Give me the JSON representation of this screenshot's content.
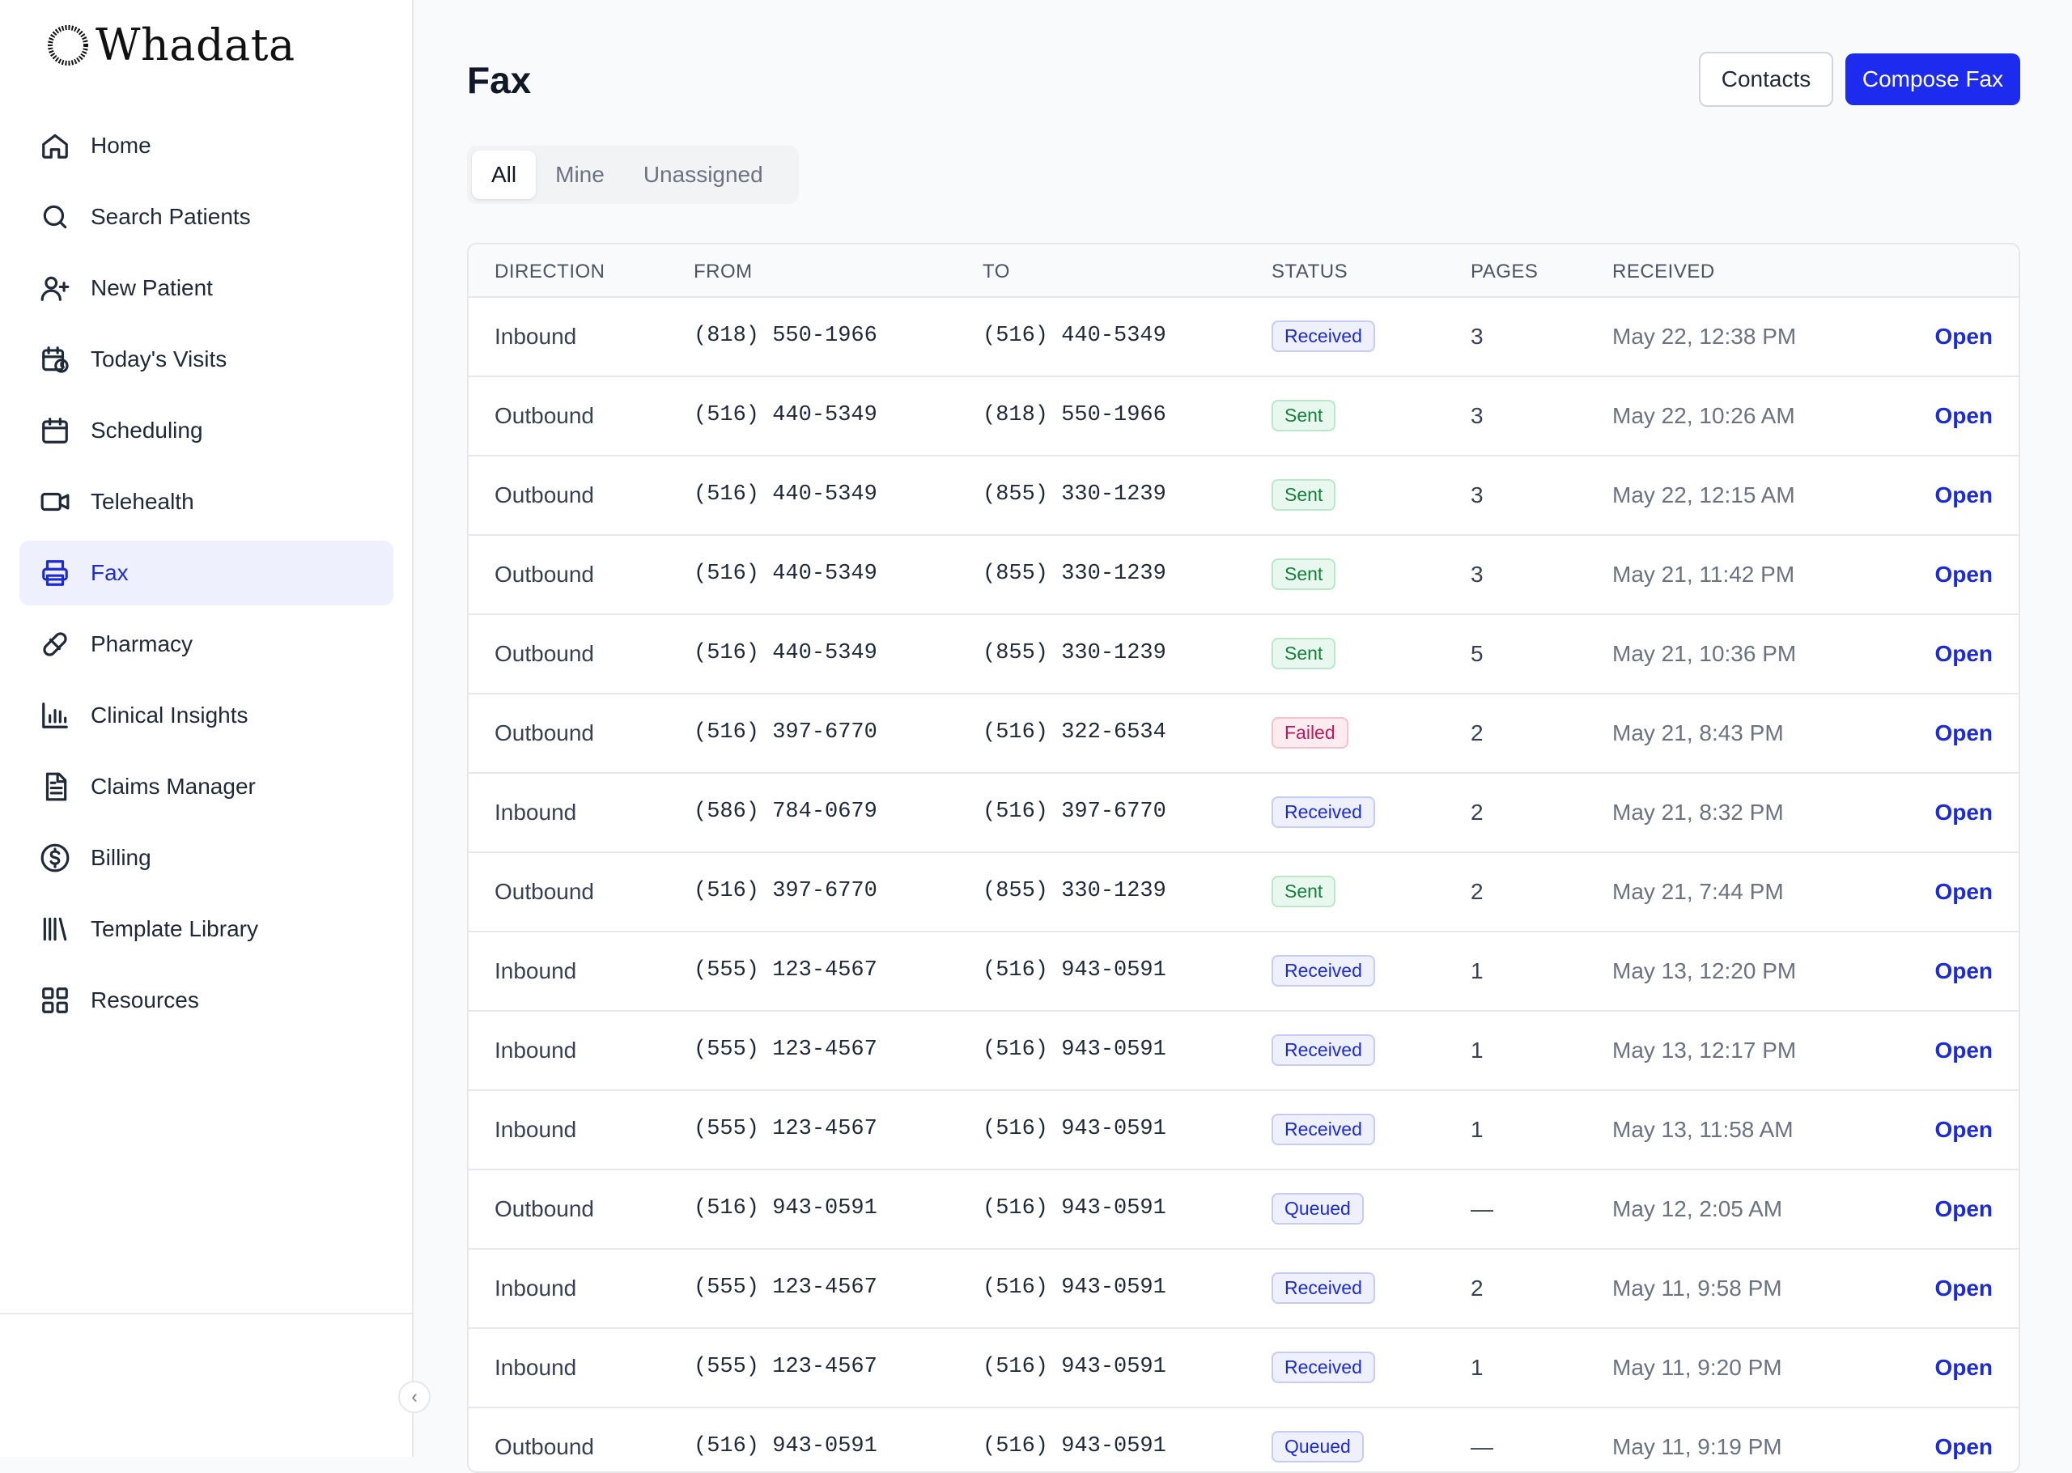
{
  "app": {
    "name": "Whadata"
  },
  "sidebar": {
    "items": [
      {
        "label": "Home",
        "icon": "home-icon",
        "active": false
      },
      {
        "label": "Search Patients",
        "icon": "search-icon",
        "active": false
      },
      {
        "label": "New Patient",
        "icon": "user-plus-icon",
        "active": false
      },
      {
        "label": "Today's Visits",
        "icon": "calendar-clock-icon",
        "active": false
      },
      {
        "label": "Scheduling",
        "icon": "calendar-icon",
        "active": false
      },
      {
        "label": "Telehealth",
        "icon": "video-icon",
        "active": false
      },
      {
        "label": "Fax",
        "icon": "printer-icon",
        "active": true
      },
      {
        "label": "Pharmacy",
        "icon": "pill-icon",
        "active": false
      },
      {
        "label": "Clinical Insights",
        "icon": "bar-chart-icon",
        "active": false
      },
      {
        "label": "Claims Manager",
        "icon": "document-icon",
        "active": false
      },
      {
        "label": "Billing",
        "icon": "dollar-icon",
        "active": false
      },
      {
        "label": "Template Library",
        "icon": "library-icon",
        "active": false
      },
      {
        "label": "Resources",
        "icon": "grid-icon",
        "active": false
      }
    ]
  },
  "header": {
    "title": "Fax",
    "contacts_label": "Contacts",
    "compose_label": "Compose Fax"
  },
  "tabs": [
    {
      "label": "All",
      "active": true
    },
    {
      "label": "Mine",
      "active": false
    },
    {
      "label": "Unassigned",
      "active": false
    }
  ],
  "table": {
    "columns": [
      "DIRECTION",
      "FROM",
      "TO",
      "STATUS",
      "PAGES",
      "RECEIVED"
    ],
    "rows": [
      {
        "direction": "Inbound",
        "from": "(818) 550-1966",
        "to": "(516) 440-5349",
        "status": "Received",
        "pages": "3",
        "received": "May 22, 12:38 PM",
        "action": "Open"
      },
      {
        "direction": "Outbound",
        "from": "(516) 440-5349",
        "to": "(818) 550-1966",
        "status": "Sent",
        "pages": "3",
        "received": "May 22, 10:26 AM",
        "action": "Open"
      },
      {
        "direction": "Outbound",
        "from": "(516) 440-5349",
        "to": "(855) 330-1239",
        "status": "Sent",
        "pages": "3",
        "received": "May 22, 12:15 AM",
        "action": "Open"
      },
      {
        "direction": "Outbound",
        "from": "(516) 440-5349",
        "to": "(855) 330-1239",
        "status": "Sent",
        "pages": "3",
        "received": "May 21, 11:42 PM",
        "action": "Open"
      },
      {
        "direction": "Outbound",
        "from": "(516) 440-5349",
        "to": "(855) 330-1239",
        "status": "Sent",
        "pages": "5",
        "received": "May 21, 10:36 PM",
        "action": "Open"
      },
      {
        "direction": "Outbound",
        "from": "(516) 397-6770",
        "to": "(516) 322-6534",
        "status": "Failed",
        "pages": "2",
        "received": "May 21, 8:43 PM",
        "action": "Open"
      },
      {
        "direction": "Inbound",
        "from": "(586) 784-0679",
        "to": "(516) 397-6770",
        "status": "Received",
        "pages": "2",
        "received": "May 21, 8:32 PM",
        "action": "Open"
      },
      {
        "direction": "Outbound",
        "from": "(516) 397-6770",
        "to": "(855) 330-1239",
        "status": "Sent",
        "pages": "2",
        "received": "May 21, 7:44 PM",
        "action": "Open"
      },
      {
        "direction": "Inbound",
        "from": "(555) 123-4567",
        "to": "(516) 943-0591",
        "status": "Received",
        "pages": "1",
        "received": "May 13, 12:20 PM",
        "action": "Open"
      },
      {
        "direction": "Inbound",
        "from": "(555) 123-4567",
        "to": "(516) 943-0591",
        "status": "Received",
        "pages": "1",
        "received": "May 13, 12:17 PM",
        "action": "Open"
      },
      {
        "direction": "Inbound",
        "from": "(555) 123-4567",
        "to": "(516) 943-0591",
        "status": "Received",
        "pages": "1",
        "received": "May 13, 11:58 AM",
        "action": "Open"
      },
      {
        "direction": "Outbound",
        "from": "(516) 943-0591",
        "to": "(516) 943-0591",
        "status": "Queued",
        "pages": "—",
        "received": "May 12, 2:05 AM",
        "action": "Open"
      },
      {
        "direction": "Inbound",
        "from": "(555) 123-4567",
        "to": "(516) 943-0591",
        "status": "Received",
        "pages": "2",
        "received": "May 11, 9:58 PM",
        "action": "Open"
      },
      {
        "direction": "Inbound",
        "from": "(555) 123-4567",
        "to": "(516) 943-0591",
        "status": "Received",
        "pages": "1",
        "received": "May 11, 9:20 PM",
        "action": "Open"
      },
      {
        "direction": "Outbound",
        "from": "(516) 943-0591",
        "to": "(516) 943-0591",
        "status": "Queued",
        "pages": "—",
        "received": "May 11, 9:19 PM",
        "action": "Open"
      }
    ]
  },
  "colors": {
    "accent": "#1d2bef",
    "active_nav_bg": "#eef0fd",
    "sent": "#15803d",
    "failed": "#c2185b"
  }
}
